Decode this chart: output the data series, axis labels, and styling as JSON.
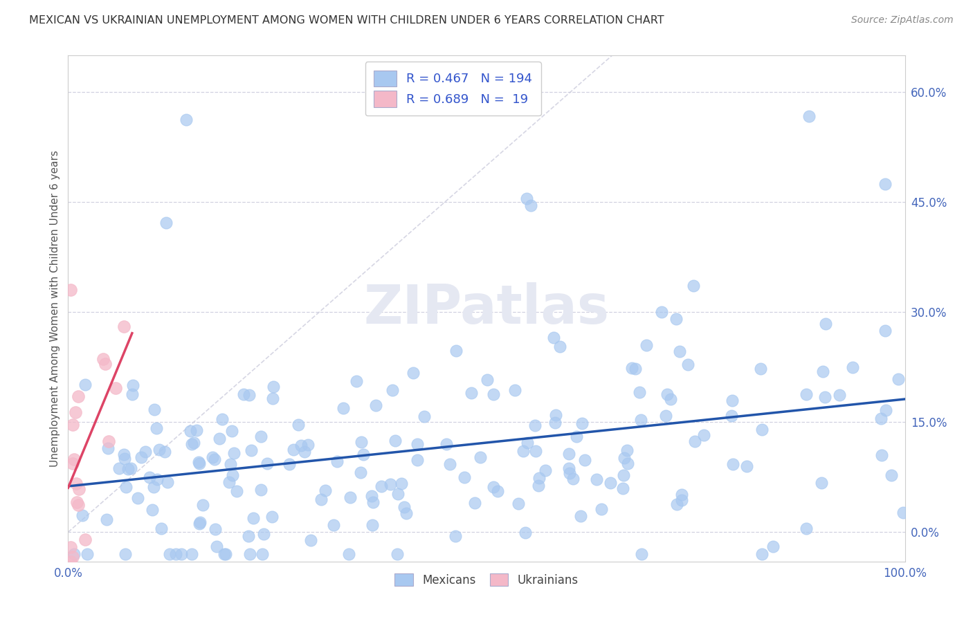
{
  "title": "MEXICAN VS UKRAINIAN UNEMPLOYMENT AMONG WOMEN WITH CHILDREN UNDER 6 YEARS CORRELATION CHART",
  "source": "Source: ZipAtlas.com",
  "ylabel": "Unemployment Among Women with Children Under 6 years",
  "xlim": [
    0.0,
    1.0
  ],
  "ylim": [
    -0.04,
    0.65
  ],
  "yticks": [
    0.0,
    0.15,
    0.3,
    0.45,
    0.6
  ],
  "ytick_labels": [
    "0.0%",
    "15.0%",
    "30.0%",
    "45.0%",
    "60.0%"
  ],
  "xticks": [
    0.0,
    1.0
  ],
  "xtick_labels": [
    "0.0%",
    "100.0%"
  ],
  "mexican_color": "#a8c8f0",
  "ukrainian_color": "#f4b8c8",
  "mexican_R": 0.467,
  "mexican_N": 194,
  "ukrainian_R": 0.689,
  "ukrainian_N": 19,
  "mexican_line_color": "#2255aa",
  "ukrainian_line_color": "#dd4466",
  "annotation_color": "#3355cc",
  "tick_color": "#4466bb",
  "grid_color": "#ccccdd",
  "title_color": "#333333",
  "ref_line_color": "#ccccdd"
}
